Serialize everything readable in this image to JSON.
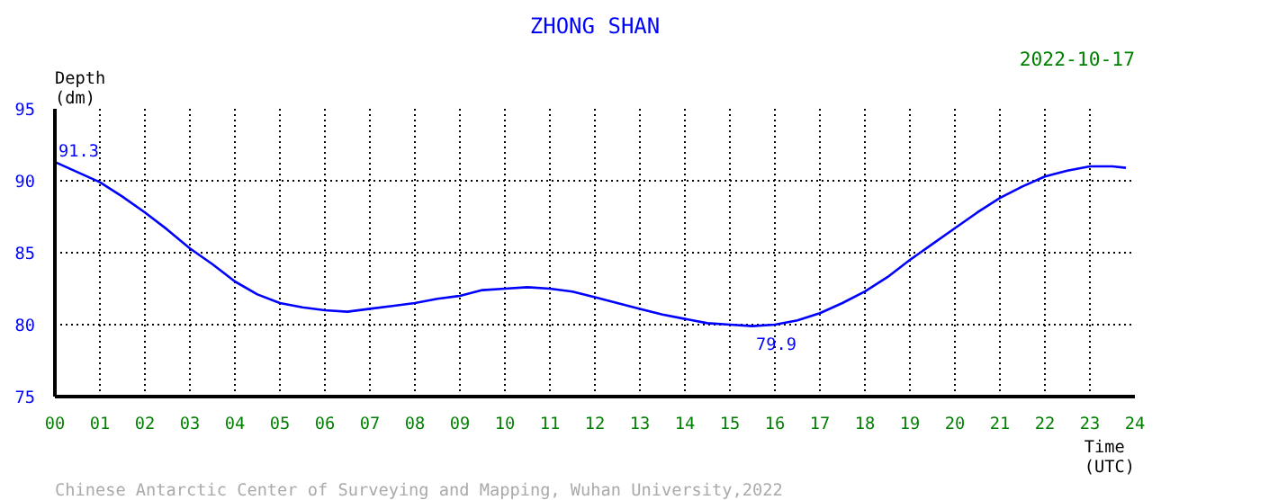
{
  "chart_data": {
    "type": "line",
    "title": "ZHONG SHAN",
    "xlabel": "Time\n(UTC)",
    "ylabel": "Depth\n(dm)",
    "x": [
      0,
      0.5,
      1,
      1.5,
      2,
      2.5,
      3,
      3.5,
      4,
      4.5,
      5,
      5.5,
      6,
      6.5,
      7,
      7.5,
      8,
      8.5,
      9,
      9.5,
      10,
      10.5,
      11,
      11.5,
      12,
      12.5,
      13,
      13.5,
      14,
      14.5,
      15,
      15.5,
      16,
      16.5,
      17,
      17.5,
      18,
      18.5,
      19,
      19.5,
      20,
      20.5,
      21,
      21.5,
      22,
      22.5,
      23,
      23.5,
      23.8
    ],
    "series": [
      {
        "color": "#0000ff",
        "values": [
          91.3,
          90.6,
          89.9,
          88.9,
          87.8,
          86.6,
          85.3,
          84.2,
          83.0,
          82.1,
          81.5,
          81.2,
          81.0,
          80.9,
          81.1,
          81.3,
          81.5,
          81.8,
          82.0,
          82.4,
          82.5,
          82.6,
          82.5,
          82.3,
          81.9,
          81.5,
          81.1,
          80.7,
          80.4,
          80.1,
          80.0,
          79.9,
          80.0,
          80.3,
          80.8,
          81.5,
          82.3,
          83.3,
          84.5,
          85.6,
          86.7,
          87.8,
          88.8,
          89.6,
          90.3,
          90.7,
          91.0,
          91.0,
          90.9
        ]
      }
    ],
    "xlim": [
      0,
      24
    ],
    "ylim": [
      75,
      95
    ],
    "xticks": [
      {
        "value": 0,
        "label": "00"
      },
      {
        "value": 1,
        "label": "01"
      },
      {
        "value": 2,
        "label": "02"
      },
      {
        "value": 3,
        "label": "03"
      },
      {
        "value": 4,
        "label": "04"
      },
      {
        "value": 5,
        "label": "05"
      },
      {
        "value": 6,
        "label": "06"
      },
      {
        "value": 7,
        "label": "07"
      },
      {
        "value": 8,
        "label": "08"
      },
      {
        "value": 9,
        "label": "09"
      },
      10,
      11,
      12,
      13,
      14,
      15,
      16,
      17,
      18,
      19,
      20,
      21,
      22,
      23,
      24
    ],
    "yticks": [
      75,
      80,
      85,
      90,
      95
    ],
    "grid": true,
    "line_style": "solid",
    "marker": "none",
    "annotations": [
      {
        "text": "91.3",
        "x": 0,
        "y": 91.3
      },
      {
        "text": "79.9",
        "x": 15.5,
        "y": 79.9
      },
      "2022-10-17",
      "Chinese Antarctic Center of Surveying and Mapping, Wuhan University,2022"
    ]
  }
}
